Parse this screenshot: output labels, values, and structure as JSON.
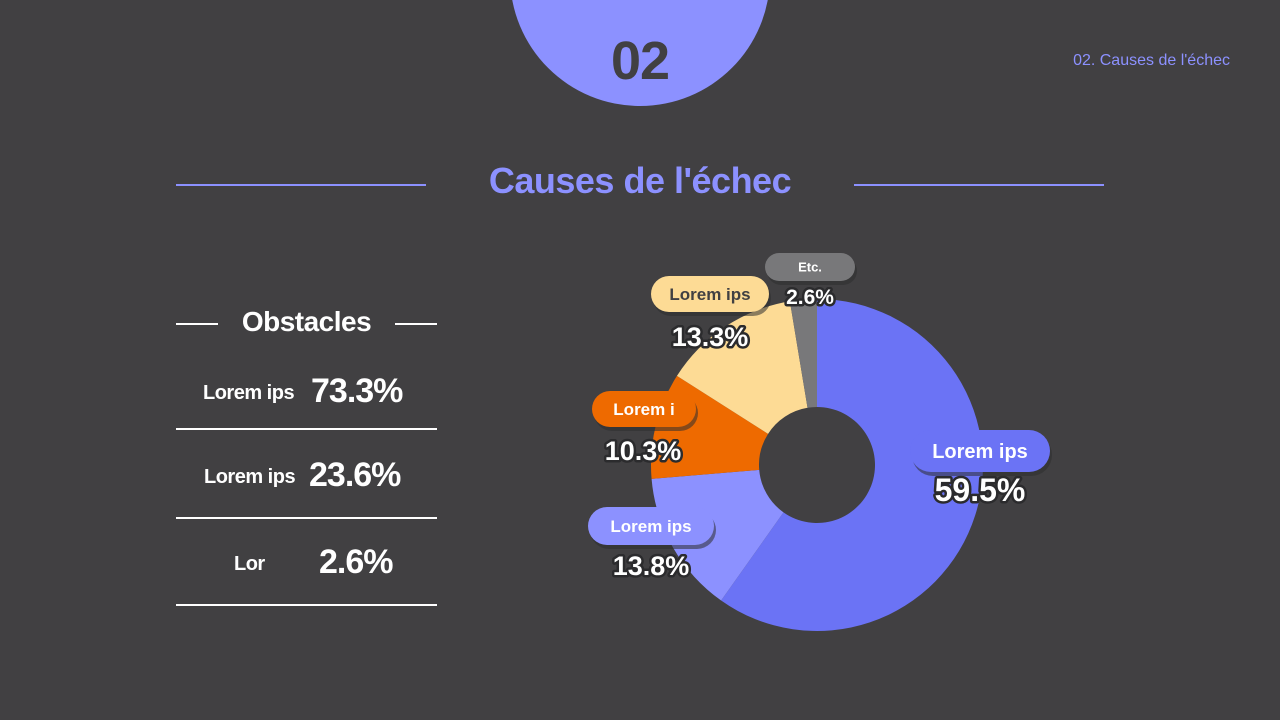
{
  "header": {
    "section_number": "02",
    "breadcrumb": "02. Causes de l'échec",
    "title": "Causes de l'échec"
  },
  "obstacles": {
    "title": "Obstacles",
    "rows": [
      {
        "label": "Lorem ips",
        "value": "73.3%"
      },
      {
        "label": "Lorem ips",
        "value": "23.6%"
      },
      {
        "label": "Lor",
        "value": "2.6%"
      }
    ]
  },
  "colors": {
    "background": "#414042",
    "accent": "#8c91ff",
    "slice_blue": "#6b73f5",
    "slice_lightblue": "#8c91ff",
    "slice_orange": "#ee6a00",
    "slice_yellow": "#fddb95",
    "slice_gray": "#78787a"
  },
  "chart_data": {
    "type": "pie",
    "donut": true,
    "slices": [
      {
        "label": "Lorem ips",
        "value": 59.5,
        "value_label": "59.5%",
        "color": "#6b73f5",
        "pill_color": "#6b73f5",
        "pill_text_color": "#ffffff"
      },
      {
        "label": "Lorem ips",
        "value": 13.8,
        "value_label": "13.8%",
        "color": "#8c91ff",
        "pill_color": "#8c91ff",
        "pill_text_color": "#ffffff"
      },
      {
        "label": "Lorem i",
        "value": 10.3,
        "value_label": "10.3%",
        "color": "#ee6a00",
        "pill_color": "#ee6a00",
        "pill_text_color": "#ffffff"
      },
      {
        "label": "Lorem ips",
        "value": 13.3,
        "value_label": "13.3%",
        "color": "#fddb95",
        "pill_color": "#fddb95",
        "pill_text_color": "#414042"
      },
      {
        "label": "Etc.",
        "value": 2.6,
        "value_label": "2.6%",
        "color": "#78787a",
        "pill_color": "#78787a",
        "pill_text_color": "#ffffff"
      }
    ]
  }
}
